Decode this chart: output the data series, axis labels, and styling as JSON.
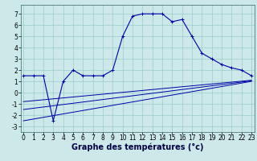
{
  "xlabel": "Graphe des températures (°c)",
  "bg_color": "#cce8e8",
  "grid_color": "#99cccc",
  "line_color": "#0000aa",
  "hours": [
    0,
    1,
    2,
    3,
    4,
    5,
    6,
    7,
    8,
    9,
    10,
    11,
    12,
    13,
    14,
    15,
    16,
    17,
    18,
    19,
    20,
    21,
    22,
    23
  ],
  "temp_curve": [
    1.5,
    1.5,
    1.5,
    -2.5,
    1.0,
    2.0,
    1.5,
    1.5,
    1.5,
    2.0,
    5.0,
    6.8,
    7.0,
    7.0,
    7.0,
    6.3,
    6.5,
    5.0,
    3.5,
    3.0,
    2.5,
    2.2,
    2.0,
    1.5
  ],
  "line1_x": [
    0,
    23
  ],
  "line1_y": [
    -0.8,
    1.1
  ],
  "line2_x": [
    0,
    23
  ],
  "line2_y": [
    -1.5,
    1.05
  ],
  "line3_x": [
    0,
    23
  ],
  "line3_y": [
    -2.5,
    1.0
  ],
  "ylim": [
    -3.5,
    7.8
  ],
  "xlim": [
    -0.3,
    23.3
  ],
  "yticks": [
    -3,
    -2,
    -1,
    0,
    1,
    2,
    3,
    4,
    5,
    6,
    7
  ],
  "xticks": [
    0,
    1,
    2,
    3,
    4,
    5,
    6,
    7,
    8,
    9,
    10,
    11,
    12,
    13,
    14,
    15,
    16,
    17,
    18,
    19,
    20,
    21,
    22,
    23
  ],
  "xlabel_fontsize": 7,
  "tick_fontsize": 5.5
}
